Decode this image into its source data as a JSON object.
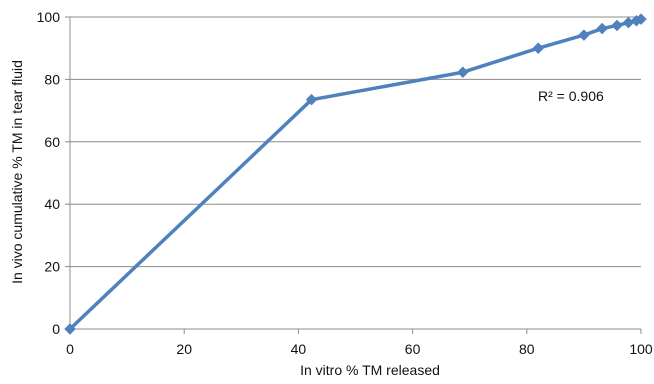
{
  "chart_data": {
    "type": "scatter",
    "title": "",
    "xlabel": "In vitro % TM released",
    "ylabel": "In vivo cumulative % TM in tear fluid",
    "xlim": [
      0,
      100
    ],
    "ylim": [
      0,
      100
    ],
    "x_ticks": [
      0,
      20,
      40,
      60,
      80,
      100
    ],
    "y_ticks": [
      0,
      20,
      40,
      60,
      80,
      100
    ],
    "grid": "horizontal",
    "legend": "none",
    "annotation": "R² = 0.906",
    "series": [
      {
        "color": "#4f81bd",
        "points": [
          {
            "x": 0,
            "y": 0
          },
          {
            "x": 42.3,
            "y": 73.5
          },
          {
            "x": 68.8,
            "y": 82.3
          },
          {
            "x": 82,
            "y": 90
          },
          {
            "x": 90,
            "y": 94.2
          },
          {
            "x": 93.2,
            "y": 96.3
          },
          {
            "x": 95.8,
            "y": 97.3
          },
          {
            "x": 97.8,
            "y": 98.2
          },
          {
            "x": 99.2,
            "y": 98.8
          },
          {
            "x": 100,
            "y": 99.3
          }
        ]
      }
    ]
  }
}
